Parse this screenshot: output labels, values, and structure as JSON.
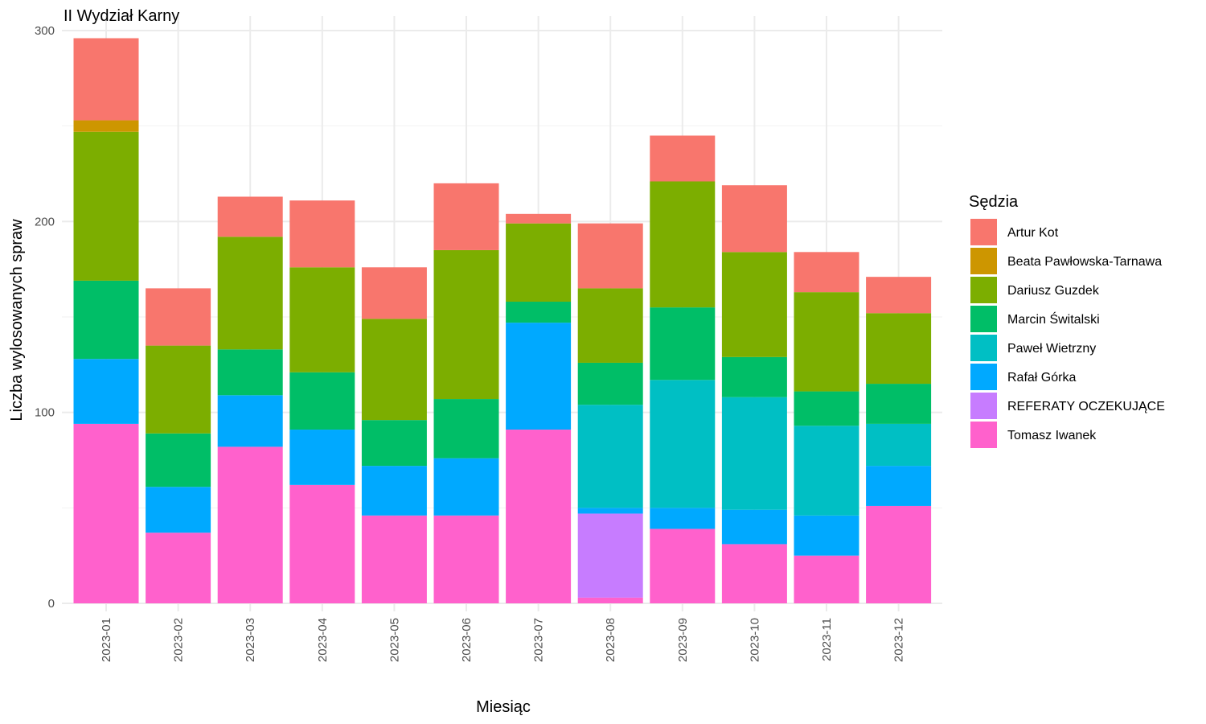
{
  "chart_data": {
    "type": "bar",
    "stacked": true,
    "title": "II Wydział Karny",
    "xlabel": "Miesiąc",
    "ylabel": "Liczba wylosowanych spraw",
    "ylim": [
      0,
      300
    ],
    "yticks": [
      0,
      100,
      200,
      300
    ],
    "grid": true,
    "legend_title": "Sędzia",
    "legend_position": "right",
    "categories": [
      "2023-01",
      "2023-02",
      "2023-03",
      "2023-04",
      "2023-05",
      "2023-06",
      "2023-07",
      "2023-08",
      "2023-09",
      "2023-10",
      "2023-11",
      "2023-12"
    ],
    "series": [
      {
        "name": "Tomasz Iwanek",
        "color": "#FF61CC",
        "values": [
          94,
          37,
          82,
          62,
          46,
          46,
          91,
          3,
          39,
          31,
          25,
          51
        ]
      },
      {
        "name": "REFERATY OCZEKUJĄCE",
        "color": "#C77CFF",
        "values": [
          0,
          0,
          0,
          0,
          0,
          0,
          0,
          44,
          0,
          0,
          0,
          0
        ]
      },
      {
        "name": "Rafał Górka",
        "color": "#00A9FF",
        "values": [
          34,
          24,
          27,
          29,
          26,
          30,
          56,
          3,
          11,
          18,
          21,
          21
        ]
      },
      {
        "name": "Paweł Wietrzny",
        "color": "#00BFC4",
        "values": [
          0,
          0,
          0,
          0,
          0,
          0,
          0,
          54,
          67,
          59,
          47,
          22
        ]
      },
      {
        "name": "Marcin Świtalski",
        "color": "#00BE67",
        "values": [
          41,
          28,
          24,
          30,
          24,
          31,
          11,
          22,
          38,
          21,
          18,
          21
        ]
      },
      {
        "name": "Dariusz Guzdek",
        "color": "#7CAE00",
        "values": [
          78,
          46,
          59,
          55,
          53,
          78,
          41,
          39,
          66,
          55,
          52,
          37
        ]
      },
      {
        "name": "Beata Pawłowska-Tarnawa",
        "color": "#CD9600",
        "values": [
          6,
          0,
          0,
          0,
          0,
          0,
          0,
          0,
          0,
          0,
          0,
          0
        ]
      },
      {
        "name": "Artur Kot",
        "color": "#F8766D",
        "values": [
          43,
          30,
          21,
          35,
          27,
          35,
          5,
          34,
          24,
          35,
          21,
          19
        ]
      }
    ],
    "legend_order": [
      "Artur Kot",
      "Beata Pawłowska-Tarnawa",
      "Dariusz Guzdek",
      "Marcin Świtalski",
      "Paweł Wietrzny",
      "Rafał Górka",
      "REFERATY OCZEKUJĄCE",
      "Tomasz Iwanek"
    ]
  }
}
